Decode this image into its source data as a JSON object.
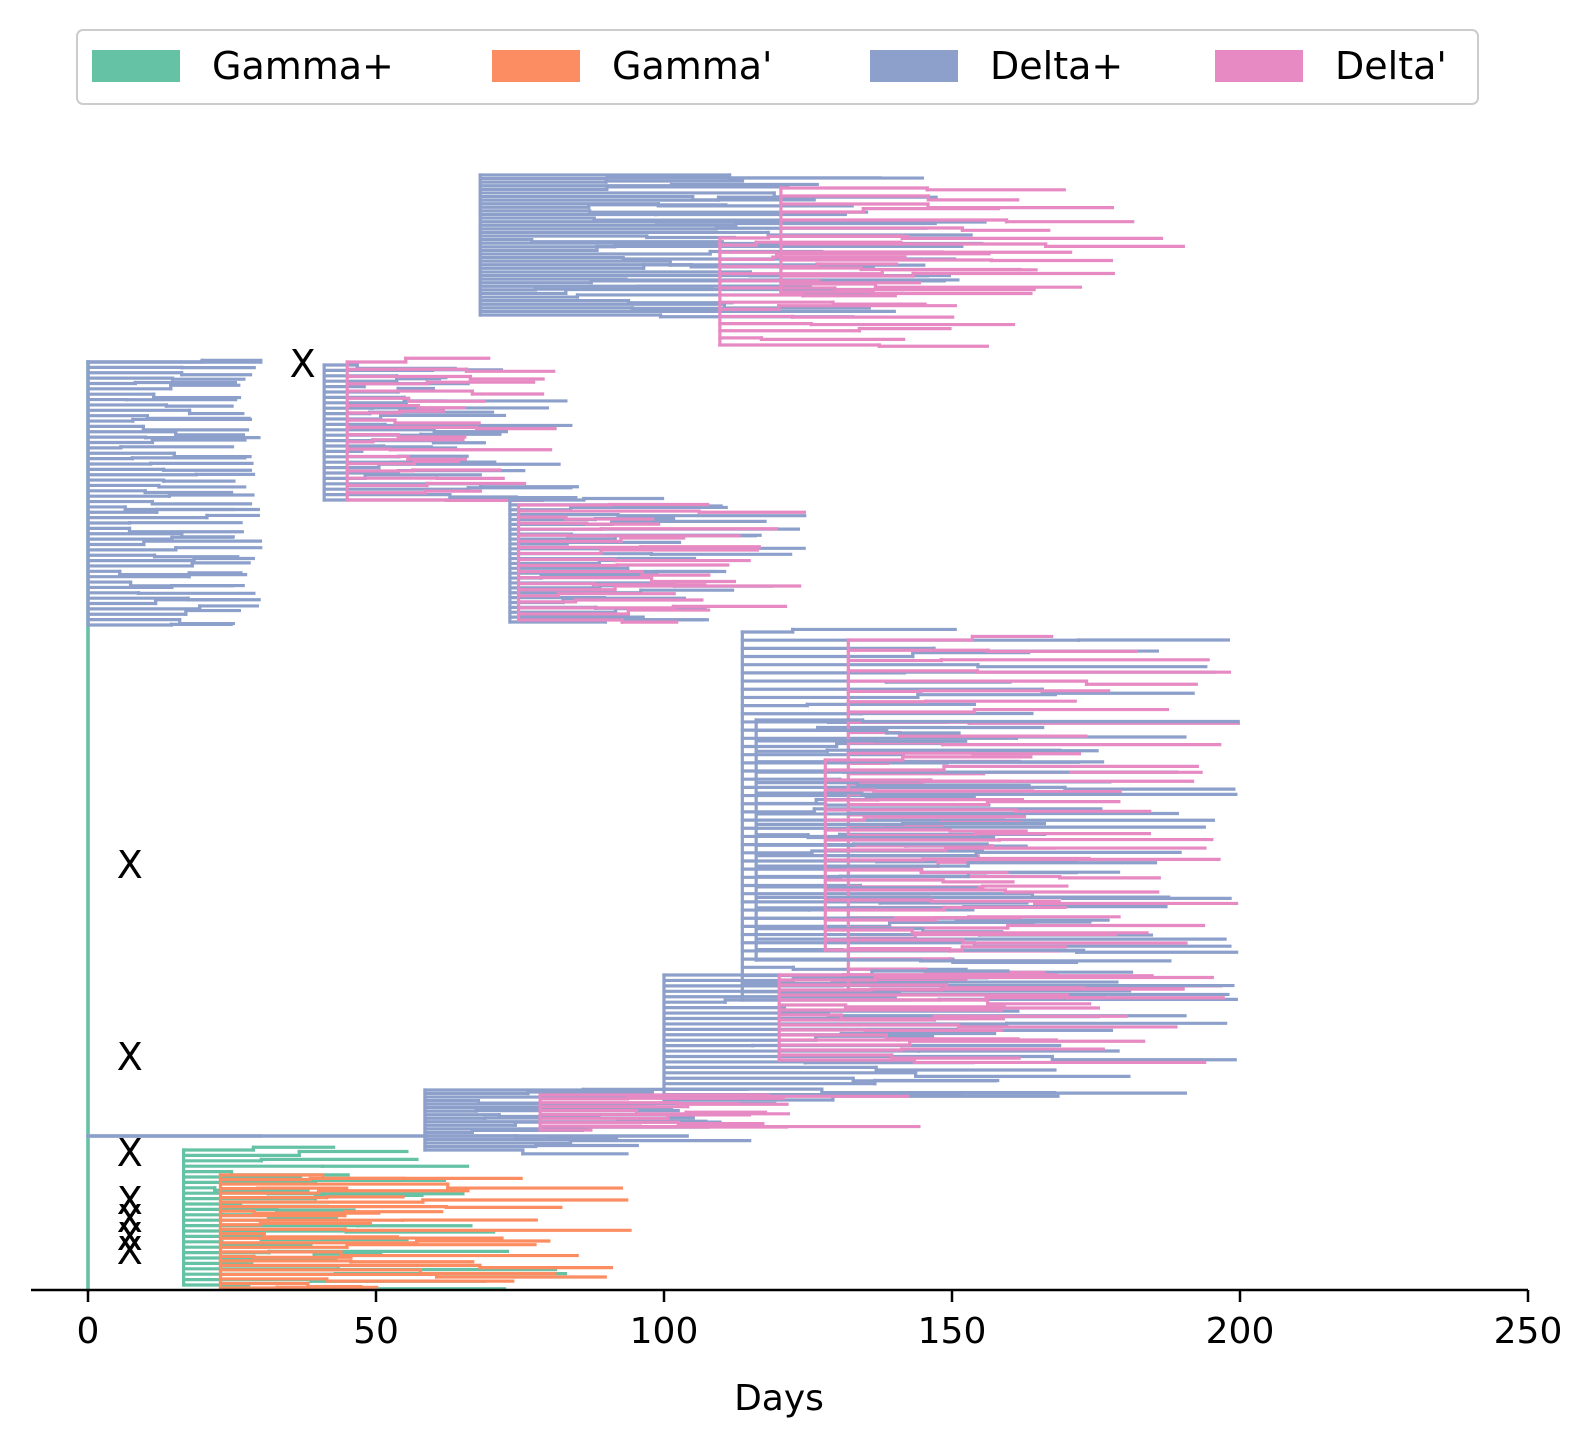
{
  "chart_data": {
    "type": "line",
    "subtype": "phylogenetic-tree",
    "title": "",
    "xlabel": "Days",
    "ylabel": "",
    "xlim": [
      -10,
      250
    ],
    "xticks": [
      0,
      50,
      100,
      150,
      200,
      250
    ],
    "xtick_labels": [
      "0",
      "50",
      "100",
      "150",
      "200",
      "250"
    ],
    "grid": false,
    "legend_position": "top",
    "colors": {
      "Gamma+": "#66c2a5",
      "Gamma'": "#fc8d62",
      "Delta+": "#8da0cb",
      "Delta'": "#e78ac3",
      "axis": "#000000"
    },
    "series": [
      {
        "name": "Gamma+",
        "color": "#66c2a5"
      },
      {
        "name": "Gamma'",
        "color": "#fc8d62"
      },
      {
        "name": "Delta+",
        "color": "#8da0cb"
      },
      {
        "name": "Delta'",
        "color": "#e78ac3"
      }
    ],
    "markers": [
      {
        "label": "X",
        "x": 35
      },
      {
        "label": "X",
        "x": 5
      },
      {
        "label": "X",
        "x": 5
      },
      {
        "label": "X",
        "x": 5
      },
      {
        "label": "X",
        "x": 5
      },
      {
        "label": "X",
        "x": 5
      },
      {
        "label": "X",
        "x": 5
      },
      {
        "label": "X",
        "x": 5
      }
    ],
    "clades": [
      {
        "series": "Delta+",
        "from": 0,
        "to": 30
      },
      {
        "series": "Delta+",
        "from": 30,
        "to": 157
      },
      {
        "series": "Delta'",
        "from": 60,
        "to": 194
      },
      {
        "series": "Delta'",
        "from": 62,
        "to": 168
      },
      {
        "series": "Delta+",
        "from": 30,
        "to": 85
      },
      {
        "series": "Delta'",
        "from": 35,
        "to": 85
      },
      {
        "series": "Delta+",
        "from": 55,
        "to": 128
      },
      {
        "series": "Delta'",
        "from": 58,
        "to": 125
      },
      {
        "series": "Delta+",
        "from": 0,
        "to": 104
      },
      {
        "series": "Delta+",
        "from": 104,
        "to": 200
      },
      {
        "series": "Delta'",
        "from": 120,
        "to": 200
      },
      {
        "series": "Delta+",
        "from": 95,
        "to": 200
      },
      {
        "series": "Delta'",
        "from": 110,
        "to": 200
      },
      {
        "series": "Delta+",
        "from": 75,
        "to": 200
      },
      {
        "series": "Delta'",
        "from": 100,
        "to": 200
      },
      {
        "series": "Delta+",
        "from": 30,
        "to": 125
      },
      {
        "series": "Delta'",
        "from": 50,
        "to": 145
      },
      {
        "series": "Gamma+",
        "from": 0,
        "to": 83
      },
      {
        "series": "Gamma'",
        "from": 5,
        "to": 95
      }
    ]
  }
}
